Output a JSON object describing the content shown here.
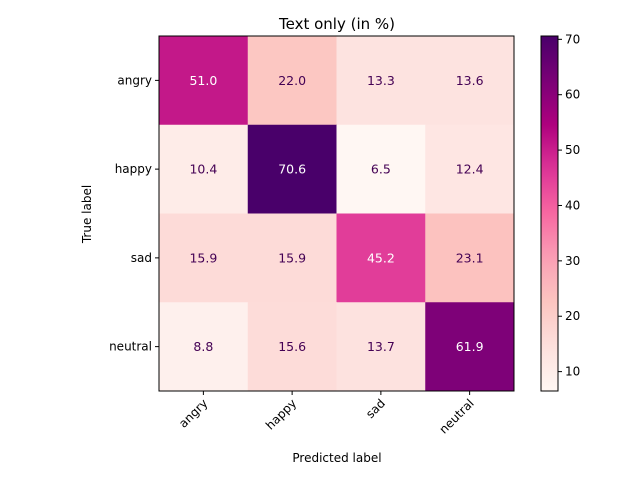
{
  "chart_data": {
    "type": "heatmap",
    "title": "Text only (in %)",
    "xlabel": "Predicted label",
    "ylabel": "True label",
    "x_categories": [
      "angry",
      "happy",
      "sad",
      "neutral"
    ],
    "y_categories": [
      "angry",
      "happy",
      "sad",
      "neutral"
    ],
    "values": [
      [
        51.0,
        22.0,
        13.3,
        13.6
      ],
      [
        10.4,
        70.6,
        6.5,
        12.4
      ],
      [
        15.9,
        15.9,
        45.2,
        23.1
      ],
      [
        8.8,
        15.6,
        13.7,
        61.9
      ]
    ],
    "value_labels": [
      [
        "51.0",
        "22.0",
        "13.3",
        "13.6"
      ],
      [
        "10.4",
        "70.6",
        "6.5",
        "12.4"
      ],
      [
        "15.9",
        "15.9",
        "45.2",
        "23.1"
      ],
      [
        "8.8",
        "15.6",
        "13.7",
        "61.9"
      ]
    ],
    "colorscale": "RdPu",
    "colorbar": {
      "range": [
        6.5,
        70.6
      ],
      "ticks": [
        10,
        20,
        30,
        40,
        50,
        60,
        70
      ],
      "tick_labels": [
        "10",
        "20",
        "30",
        "40",
        "50",
        "60",
        "70"
      ]
    },
    "grid": false
  }
}
